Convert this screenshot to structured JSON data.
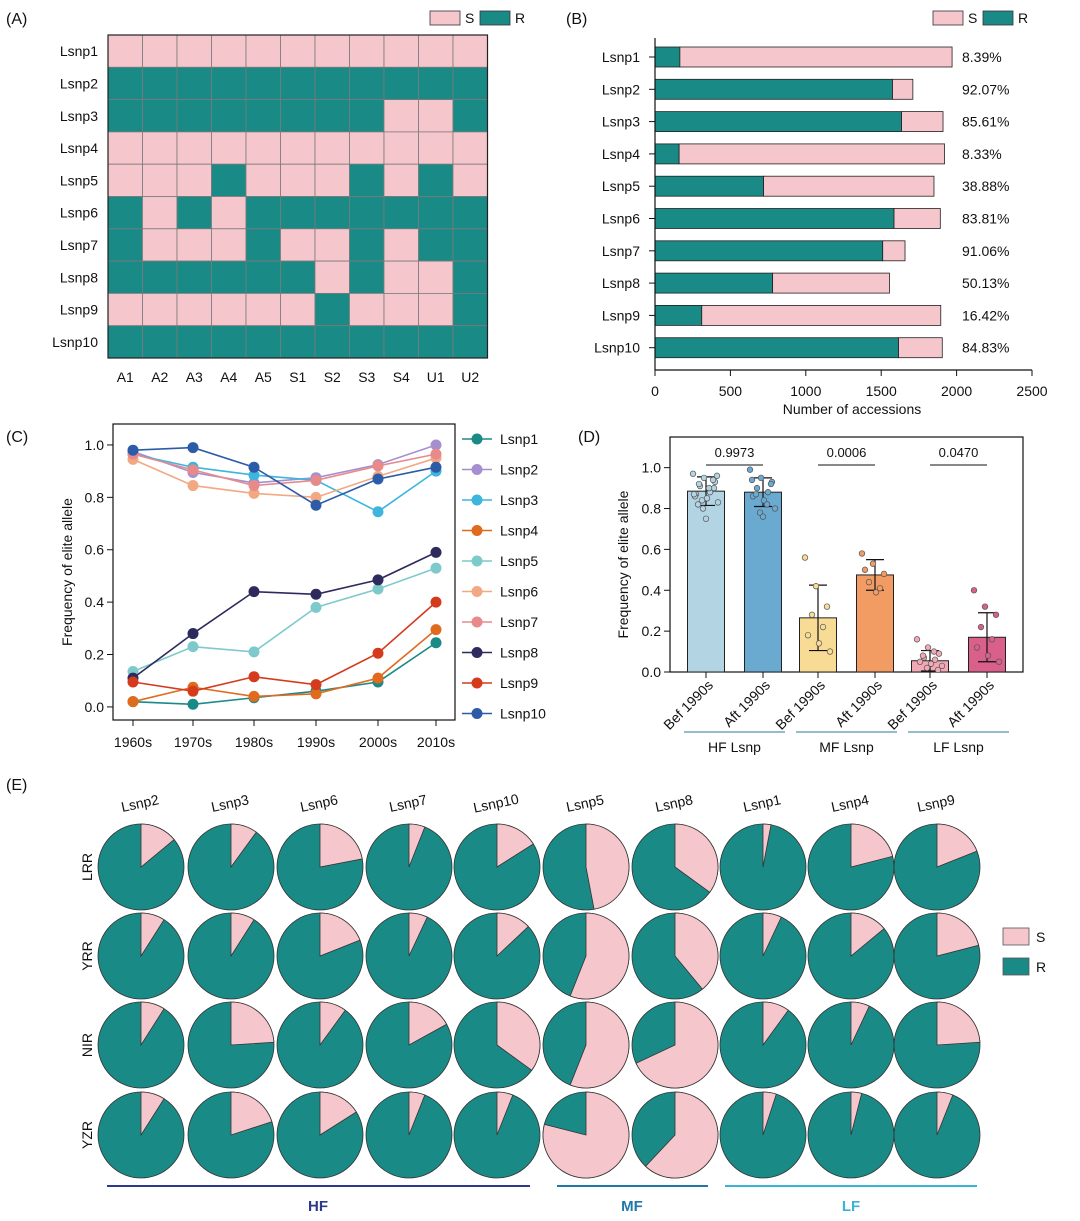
{
  "colors": {
    "S": "#f5c6cb",
    "R": "#1a8a87",
    "stroke": "#333333",
    "grid": "#7a7a7a",
    "hf_line": "#2b3a8c",
    "mf_line": "#1f78a8",
    "lf_line": "#3bb3d6"
  },
  "panel_labels": [
    "(A)",
    "(B)",
    "(C)",
    "(D)",
    "(E)"
  ],
  "legend_sr": [
    "S",
    "R"
  ],
  "chart_data": [
    {
      "type": "heatmap",
      "panel": "(A)",
      "rows": [
        "Lsnp1",
        "Lsnp2",
        "Lsnp3",
        "Lsnp4",
        "Lsnp5",
        "Lsnp6",
        "Lsnp7",
        "Lsnp8",
        "Lsnp9",
        "Lsnp10"
      ],
      "columns": [
        "A1",
        "A2",
        "A3",
        "A4",
        "A5",
        "S1",
        "S2",
        "S3",
        "S4",
        "U1",
        "U2"
      ],
      "cells": [
        [
          "S",
          "S",
          "S",
          "S",
          "S",
          "S",
          "S",
          "S",
          "S",
          "S",
          "S"
        ],
        [
          "R",
          "R",
          "R",
          "R",
          "R",
          "R",
          "R",
          "R",
          "R",
          "R",
          "R"
        ],
        [
          "R",
          "R",
          "R",
          "R",
          "R",
          "R",
          "R",
          "R",
          "S",
          "S",
          "R"
        ],
        [
          "S",
          "S",
          "S",
          "S",
          "S",
          "S",
          "S",
          "S",
          "S",
          "S",
          "S"
        ],
        [
          "S",
          "S",
          "S",
          "R",
          "S",
          "S",
          "S",
          "R",
          "S",
          "R",
          "S"
        ],
        [
          "R",
          "S",
          "R",
          "S",
          "R",
          "R",
          "R",
          "R",
          "R",
          "R",
          "R"
        ],
        [
          "R",
          "S",
          "S",
          "S",
          "R",
          "S",
          "S",
          "R",
          "S",
          "R",
          "R"
        ],
        [
          "R",
          "R",
          "R",
          "R",
          "R",
          "R",
          "S",
          "R",
          "S",
          "S",
          "R"
        ],
        [
          "S",
          "S",
          "S",
          "S",
          "S",
          "S",
          "R",
          "S",
          "S",
          "S",
          "R"
        ],
        [
          "R",
          "R",
          "R",
          "R",
          "R",
          "R",
          "R",
          "R",
          "R",
          "R",
          "R"
        ]
      ],
      "legend": [
        "S",
        "R"
      ]
    },
    {
      "type": "bar",
      "panel": "(B)",
      "orientation": "horizontal-stacked",
      "categories": [
        "Lsnp1",
        "Lsnp2",
        "Lsnp3",
        "Lsnp4",
        "Lsnp5",
        "Lsnp6",
        "Lsnp7",
        "Lsnp8",
        "Lsnp9",
        "Lsnp10"
      ],
      "series": [
        {
          "name": "R",
          "values": [
            165,
            1575,
            1635,
            160,
            720,
            1585,
            1510,
            780,
            310,
            1615
          ]
        },
        {
          "name": "S",
          "values": [
            1805,
            135,
            275,
            1760,
            1130,
            307,
            148,
            775,
            1585,
            290
          ]
        }
      ],
      "percent_labels": [
        "8.39%",
        "92.07%",
        "85.61%",
        "8.33%",
        "38.88%",
        "83.81%",
        "91.06%",
        "50.13%",
        "16.42%",
        "84.83%"
      ],
      "xlabel": "Number of accessions",
      "xticks": [
        0,
        500,
        1000,
        1500,
        2000,
        2500
      ],
      "xlim": [
        0,
        2500
      ],
      "legend": [
        "S",
        "R"
      ]
    },
    {
      "type": "line",
      "panel": "(C)",
      "x": [
        "1960s",
        "1970s",
        "1980s",
        "1990s",
        "2000s",
        "2010s"
      ],
      "ylabel": "Frequency of elite allele",
      "ylim": [
        -0.05,
        1.08
      ],
      "yticks": [
        0.0,
        0.2,
        0.4,
        0.6,
        0.8,
        1.0
      ],
      "series": [
        {
          "name": "Lsnp1",
          "color": "#1a8a87",
          "values": [
            0.02,
            0.01,
            0.035,
            0.06,
            0.095,
            0.245
          ]
        },
        {
          "name": "Lsnp2",
          "color": "#a68fcf",
          "values": [
            0.975,
            0.895,
            0.855,
            0.875,
            0.925,
            1.0
          ]
        },
        {
          "name": "Lsnp3",
          "color": "#3db5dd",
          "values": [
            0.965,
            0.915,
            0.885,
            0.865,
            0.745,
            0.9
          ]
        },
        {
          "name": "Lsnp4",
          "color": "#e06a1e",
          "values": [
            0.02,
            0.075,
            0.04,
            0.05,
            0.11,
            0.295
          ]
        },
        {
          "name": "Lsnp5",
          "color": "#7ec9cc",
          "values": [
            0.135,
            0.23,
            0.21,
            0.38,
            0.45,
            0.53
          ]
        },
        {
          "name": "Lsnp6",
          "color": "#f2a882",
          "values": [
            0.945,
            0.845,
            0.815,
            0.8,
            0.88,
            0.95
          ]
        },
        {
          "name": "Lsnp7",
          "color": "#e88a8a",
          "values": [
            0.965,
            0.905,
            0.845,
            0.865,
            0.92,
            0.965
          ]
        },
        {
          "name": "Lsnp8",
          "color": "#2e2a5e",
          "values": [
            0.11,
            0.28,
            0.44,
            0.43,
            0.485,
            0.59
          ]
        },
        {
          "name": "Lsnp9",
          "color": "#d63a1c",
          "values": [
            0.095,
            0.06,
            0.115,
            0.085,
            0.205,
            0.4
          ]
        },
        {
          "name": "Lsnp10",
          "color": "#2c5ba8",
          "values": [
            0.98,
            0.99,
            0.915,
            0.77,
            0.87,
            0.915
          ]
        }
      ]
    },
    {
      "type": "bar",
      "panel": "(D)",
      "ylabel": "Frequency of elite allele",
      "ylim": [
        0,
        1.15
      ],
      "yticks": [
        0.0,
        0.2,
        0.4,
        0.6,
        0.8,
        1.0
      ],
      "categories": [
        "Bef 1990s",
        "Aft 1990s",
        "Bef 1990s",
        "Aft 1990s",
        "Bef 1990s",
        "Aft 1990s"
      ],
      "groups": [
        {
          "label": "HF Lsnp",
          "p_value": "0.9973"
        },
        {
          "label": "MF Lsnp",
          "p_value": "0.0006"
        },
        {
          "label": "LF Lsnp",
          "p_value": "0.0470"
        }
      ],
      "values": [
        0.885,
        0.88,
        0.265,
        0.475,
        0.055,
        0.17
      ],
      "errors": [
        0.07,
        0.07,
        0.16,
        0.075,
        0.05,
        0.12
      ],
      "bar_colors": [
        "#b3d4e3",
        "#6aa9d0",
        "#f8dc95",
        "#f29b62",
        "#f2a9b6",
        "#d9608a"
      ],
      "points": [
        [
          0.97,
          0.95,
          0.93,
          0.91,
          0.89,
          0.87,
          0.85,
          0.83,
          0.8,
          0.9,
          0.92,
          0.88,
          0.86,
          0.75,
          0.96,
          0.84,
          0.94,
          0.82,
          0.9,
          0.87
        ],
        [
          0.99,
          0.95,
          0.93,
          0.9,
          0.88,
          0.86,
          0.84,
          0.8,
          0.78,
          0.92,
          0.87,
          0.82,
          0.94,
          0.76
        ],
        [
          0.56,
          0.42,
          0.32,
          0.28,
          0.22,
          0.18,
          0.14,
          0.1
        ],
        [
          0.58,
          0.53,
          0.48,
          0.44,
          0.41,
          0.5,
          0.39
        ],
        [
          0.16,
          0.12,
          0.09,
          0.07,
          0.06,
          0.05,
          0.04,
          0.03,
          0.02,
          0.01,
          0.08,
          0.1
        ],
        [
          0.4,
          0.32,
          0.28,
          0.22,
          0.16,
          0.12,
          0.08,
          0.05
        ]
      ]
    },
    {
      "type": "pie",
      "panel": "(E)",
      "columns": [
        "Lsnp2",
        "Lsnp3",
        "Lsnp6",
        "Lsnp7",
        "Lsnp10",
        "Lsnp5",
        "Lsnp8",
        "Lsnp1",
        "Lsnp4",
        "Lsnp9"
      ],
      "rows": [
        "LRR",
        "YRR",
        "NIR",
        "YZR"
      ],
      "s_fraction": [
        [
          0.14,
          0.1,
          0.22,
          0.06,
          0.16,
          0.47,
          0.35,
          0.03,
          0.21,
          0.19
        ],
        [
          0.09,
          0.09,
          0.19,
          0.07,
          0.13,
          0.56,
          0.39,
          0.07,
          0.14,
          0.21
        ],
        [
          0.09,
          0.24,
          0.1,
          0.17,
          0.35,
          0.56,
          0.68,
          0.1,
          0.07,
          0.24
        ],
        [
          0.09,
          0.2,
          0.16,
          0.06,
          0.06,
          0.79,
          0.62,
          0.05,
          0.04,
          0.06
        ]
      ],
      "legend": [
        "S",
        "R"
      ],
      "group_labels": [
        "HF",
        "MF",
        "LF"
      ]
    }
  ]
}
